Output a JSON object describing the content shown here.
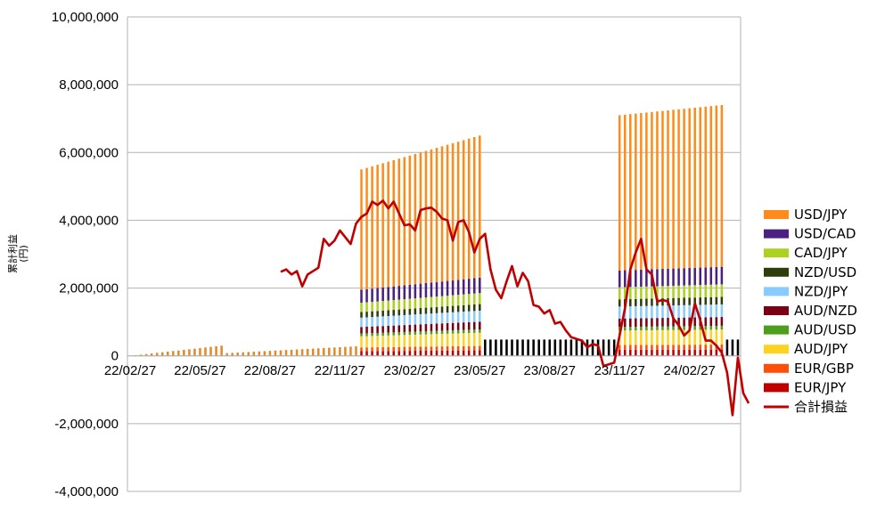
{
  "chart_data": {
    "type": "bar",
    "title": "",
    "xlabel": "",
    "ylabel": "累計利益\n(円)",
    "ylim": [
      -4000000,
      10000000
    ],
    "y_ticks": [
      {
        "value": 10000000,
        "label": "10,000,000"
      },
      {
        "value": 8000000,
        "label": "8,000,000"
      },
      {
        "value": 6000000,
        "label": "6,000,000"
      },
      {
        "value": 4000000,
        "label": "4,000,000"
      },
      {
        "value": 2000000,
        "label": "2,000,000"
      },
      {
        "value": 0,
        "label": "0"
      },
      {
        "value": -2000000,
        "label": "-2,000,000"
      },
      {
        "value": -4000000,
        "label": "-4,000,000"
      }
    ],
    "x_ticks": [
      {
        "index": 0,
        "label": "22/02/27"
      },
      {
        "index": 13,
        "label": "22/05/27"
      },
      {
        "index": 26,
        "label": "22/08/27"
      },
      {
        "index": 39,
        "label": "22/11/27"
      },
      {
        "index": 52,
        "label": "23/02/27"
      },
      {
        "index": 65,
        "label": "23/05/27"
      },
      {
        "index": 78,
        "label": "23/08/27"
      },
      {
        "index": 91,
        "label": "23/11/27"
      },
      {
        "index": 104,
        "label": "24/02/27"
      }
    ],
    "grid": true,
    "legend_position": "right",
    "series": [
      {
        "name": "USD/JPY",
        "color": "#ff8c1a"
      },
      {
        "name": "USD/CAD",
        "color": "#4b2080"
      },
      {
        "name": "CAD/JPY",
        "color": "#aad21e"
      },
      {
        "name": "NZD/USD",
        "color": "#2e3d0a"
      },
      {
        "name": "NZD/JPY",
        "color": "#88ccff"
      },
      {
        "name": "AUD/NZD",
        "color": "#7a0014"
      },
      {
        "name": "AUD/USD",
        "color": "#4d9e1c"
      },
      {
        "name": "AUD/JPY",
        "color": "#ffd21f"
      },
      {
        "name": "EUR/GBP",
        "color": "#ff4d0a"
      },
      {
        "name": "EUR/JPY",
        "color": "#c00000"
      },
      {
        "name": "合計損益",
        "color": "#c00000",
        "type": "line"
      }
    ],
    "week_count": 114,
    "segments": [
      {
        "from": 0,
        "to": 17,
        "start": 0,
        "end": 300000
      },
      {
        "from": 18,
        "to": 42,
        "start": 80000,
        "end": 280000
      },
      {
        "from": 43,
        "to": 65,
        "start": 5500000,
        "end": 6500000
      },
      {
        "from": 66,
        "to": 90,
        "start": 480000,
        "end": 480000
      },
      {
        "from": 91,
        "to": 110,
        "start": 7100000,
        "end": 7400000
      },
      {
        "from": 111,
        "to": 114,
        "start": 480000,
        "end": 480000
      }
    ],
    "total_line": [
      [
        28,
        2480000
      ],
      [
        29,
        2550000
      ],
      [
        30,
        2400000
      ],
      [
        31,
        2500000
      ],
      [
        32,
        2050000
      ],
      [
        33,
        2400000
      ],
      [
        34,
        2500000
      ],
      [
        35,
        2600000
      ],
      [
        36,
        3450000
      ],
      [
        37,
        3250000
      ],
      [
        38,
        3400000
      ],
      [
        39,
        3700000
      ],
      [
        40,
        3500000
      ],
      [
        41,
        3300000
      ],
      [
        42,
        3900000
      ],
      [
        43,
        4100000
      ],
      [
        44,
        4200000
      ],
      [
        45,
        4550000
      ],
      [
        46,
        4450000
      ],
      [
        47,
        4580000
      ],
      [
        48,
        4350000
      ],
      [
        49,
        4550000
      ],
      [
        50,
        4200000
      ],
      [
        51,
        3850000
      ],
      [
        52,
        3880000
      ],
      [
        53,
        3700000
      ],
      [
        54,
        4300000
      ],
      [
        55,
        4350000
      ],
      [
        56,
        4370000
      ],
      [
        57,
        4250000
      ],
      [
        58,
        4050000
      ],
      [
        59,
        4000000
      ],
      [
        60,
        3400000
      ],
      [
        61,
        3950000
      ],
      [
        62,
        4000000
      ],
      [
        63,
        3650000
      ],
      [
        64,
        3050000
      ],
      [
        65,
        3450000
      ],
      [
        66,
        3600000
      ],
      [
        67,
        2550000
      ],
      [
        68,
        1950000
      ],
      [
        69,
        1700000
      ],
      [
        70,
        2200000
      ],
      [
        71,
        2650000
      ],
      [
        72,
        2050000
      ],
      [
        73,
        2450000
      ],
      [
        74,
        2200000
      ],
      [
        75,
        1500000
      ],
      [
        76,
        1450000
      ],
      [
        77,
        1250000
      ],
      [
        78,
        1350000
      ],
      [
        79,
        950000
      ],
      [
        80,
        1000000
      ],
      [
        81,
        750000
      ],
      [
        82,
        550000
      ],
      [
        83,
        500000
      ],
      [
        84,
        450000
      ],
      [
        85,
        250000
      ],
      [
        86,
        350000
      ],
      [
        87,
        300000
      ],
      [
        88,
        -300000
      ],
      [
        89,
        -250000
      ],
      [
        90,
        -200000
      ],
      [
        91,
        600000
      ],
      [
        92,
        1400000
      ],
      [
        93,
        2550000
      ],
      [
        94,
        3050000
      ],
      [
        95,
        3450000
      ],
      [
        96,
        2550000
      ],
      [
        97,
        2400000
      ],
      [
        98,
        1600000
      ],
      [
        99,
        1650000
      ],
      [
        100,
        1600000
      ],
      [
        101,
        1100000
      ],
      [
        102,
        900000
      ],
      [
        103,
        600000
      ],
      [
        104,
        750000
      ],
      [
        105,
        1550000
      ],
      [
        106,
        1050000
      ],
      [
        107,
        450000
      ],
      [
        108,
        450000
      ],
      [
        109,
        300000
      ],
      [
        110,
        100000
      ],
      [
        111,
        -500000
      ],
      [
        112,
        -1750000
      ],
      [
        113,
        -50000
      ],
      [
        114,
        -1100000
      ],
      [
        115,
        -1400000
      ]
    ]
  }
}
